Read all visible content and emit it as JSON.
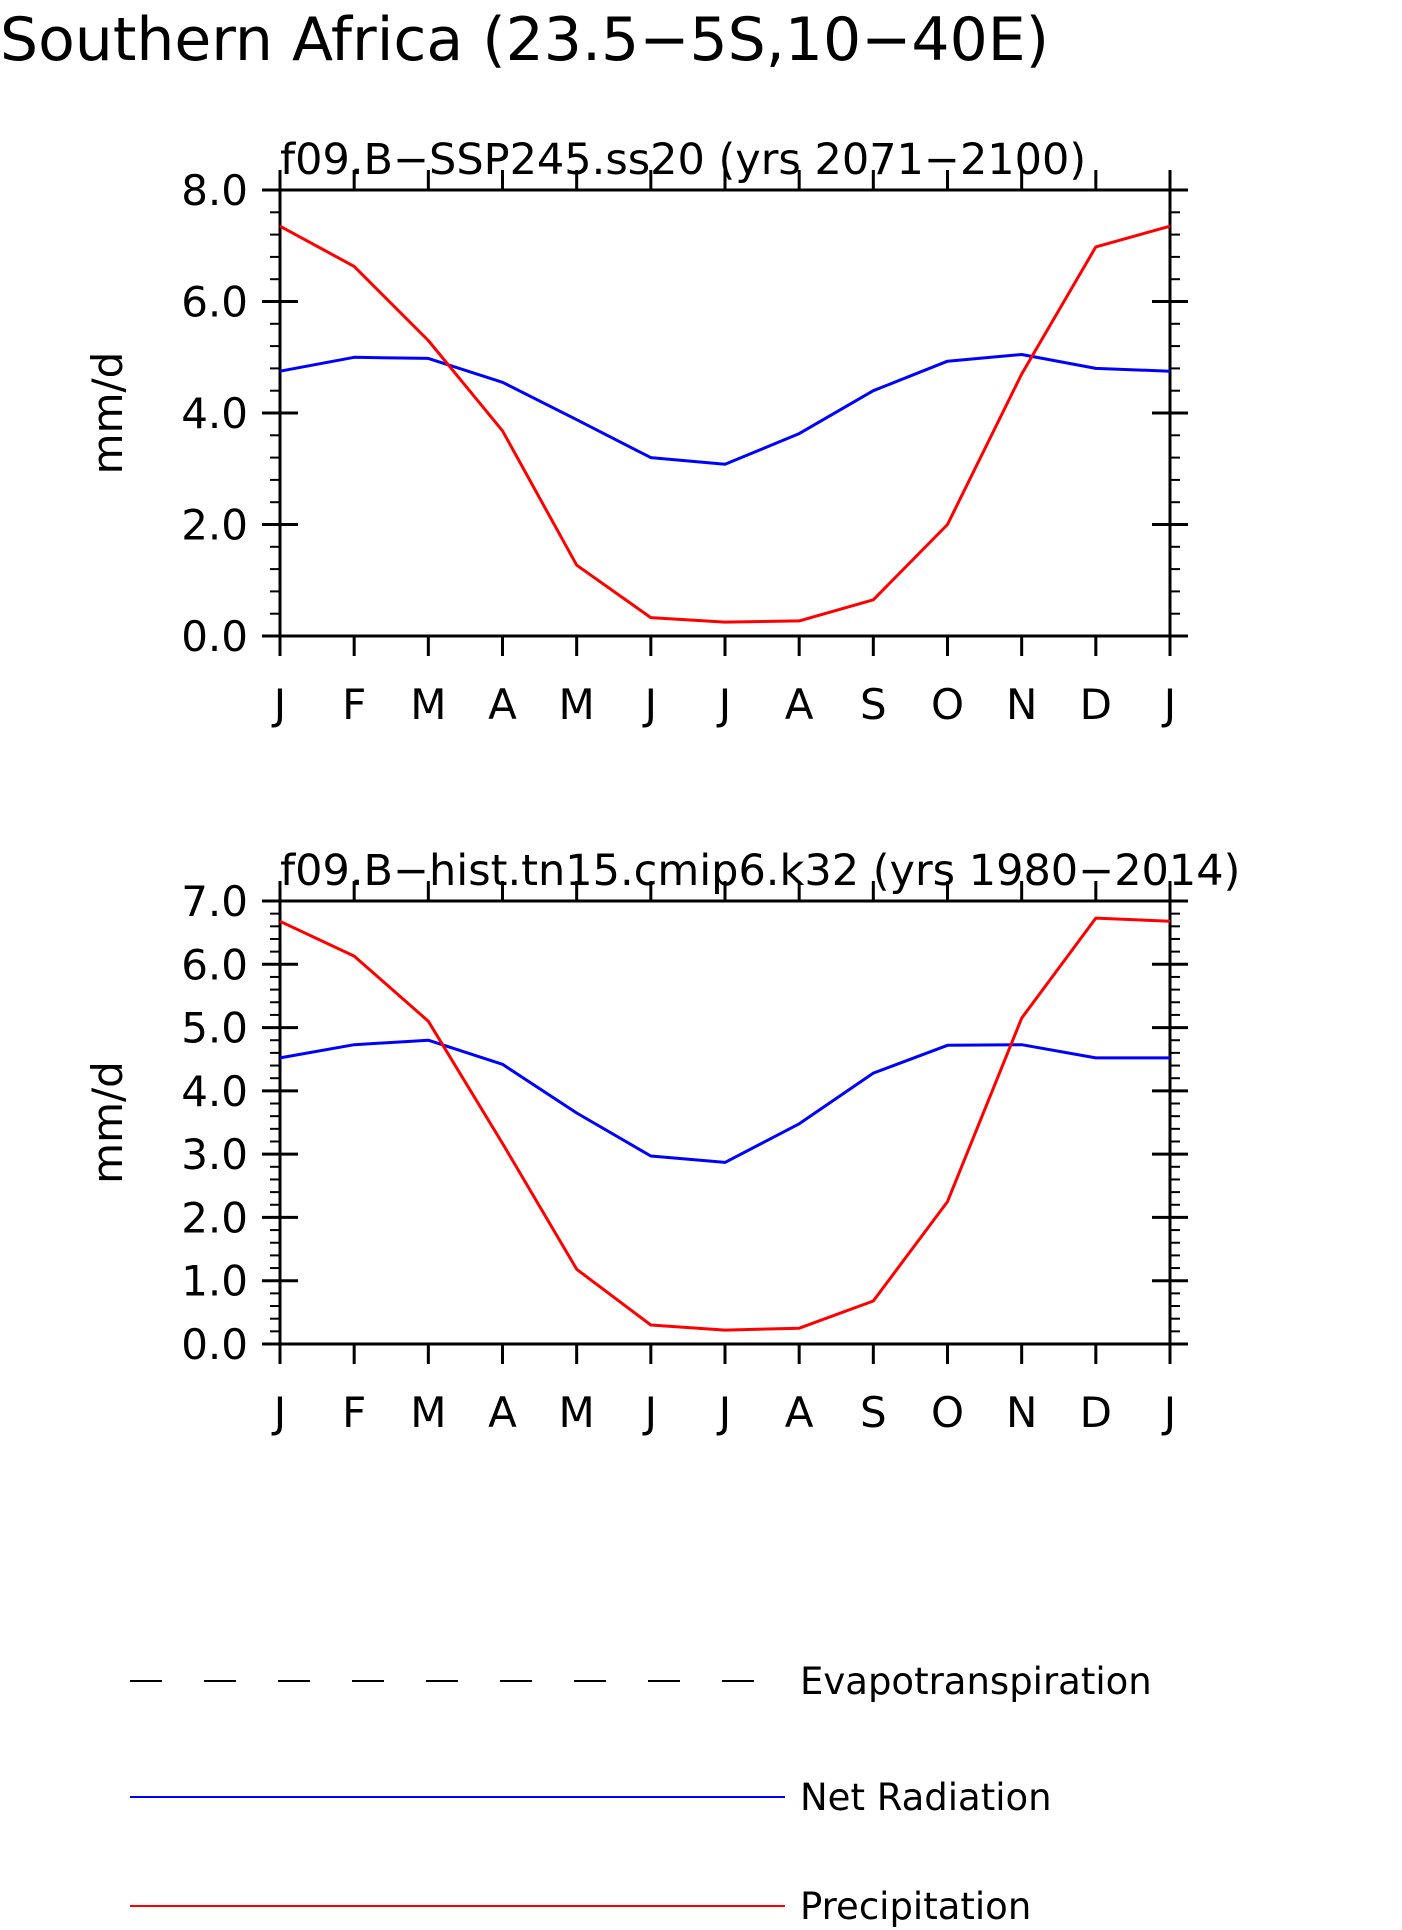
{
  "figure": {
    "title": "Southern Africa (23.5−5S,10−40E)"
  },
  "legend": {
    "items": [
      {
        "label": "Evapotranspiration",
        "color": "#000000",
        "style": "dashed"
      },
      {
        "label": "Net Radiation",
        "color": "#0000ff",
        "style": "solid"
      },
      {
        "label": "Precipitation",
        "color": "#ff0000",
        "style": "solid"
      }
    ]
  },
  "chart_data": [
    {
      "type": "line",
      "title": "f09.B−SSP245.ss20 (yrs 2071−2100)",
      "xlabel": "",
      "ylabel": "mm/d",
      "categories": [
        "J",
        "F",
        "M",
        "A",
        "M",
        "J",
        "J",
        "A",
        "S",
        "O",
        "N",
        "D",
        "J"
      ],
      "ylim": [
        0,
        8
      ],
      "yticks": [
        0,
        2,
        4,
        6,
        8
      ],
      "ytick_labels": [
        "0.0",
        "2.0",
        "4.0",
        "6.0",
        "8.0"
      ],
      "grid": false,
      "series": [
        {
          "name": "Net Radiation",
          "color": "#0000ff",
          "values": [
            4.75,
            5.0,
            4.98,
            4.55,
            3.88,
            3.2,
            3.08,
            3.63,
            4.4,
            4.93,
            5.05,
            4.8,
            4.75
          ]
        },
        {
          "name": "Precipitation",
          "color": "#ff0000",
          "values": [
            7.35,
            6.63,
            5.3,
            3.68,
            1.27,
            0.33,
            0.25,
            0.27,
            0.65,
            2.0,
            4.7,
            6.98,
            7.35
          ]
        }
      ]
    },
    {
      "type": "line",
      "title": "f09.B−hist.tn15.cmip6.k32 (yrs 1980−2014)",
      "xlabel": "",
      "ylabel": "mm/d",
      "categories": [
        "J",
        "F",
        "M",
        "A",
        "M",
        "J",
        "J",
        "A",
        "S",
        "O",
        "N",
        "D",
        "J"
      ],
      "ylim": [
        0,
        7
      ],
      "yticks": [
        0,
        1,
        2,
        3,
        4,
        5,
        6,
        7
      ],
      "ytick_labels": [
        "0.0",
        "1.0",
        "2.0",
        "3.0",
        "4.0",
        "5.0",
        "6.0",
        "7.0"
      ],
      "grid": false,
      "series": [
        {
          "name": "Net Radiation",
          "color": "#0000ff",
          "values": [
            4.52,
            4.73,
            4.8,
            4.42,
            3.65,
            2.97,
            2.87,
            3.48,
            4.28,
            4.72,
            4.73,
            4.52,
            4.52
          ]
        },
        {
          "name": "Precipitation",
          "color": "#ff0000",
          "values": [
            6.68,
            6.13,
            5.1,
            3.17,
            1.18,
            0.3,
            0.22,
            0.25,
            0.68,
            2.25,
            5.15,
            6.73,
            6.68
          ]
        }
      ]
    }
  ]
}
